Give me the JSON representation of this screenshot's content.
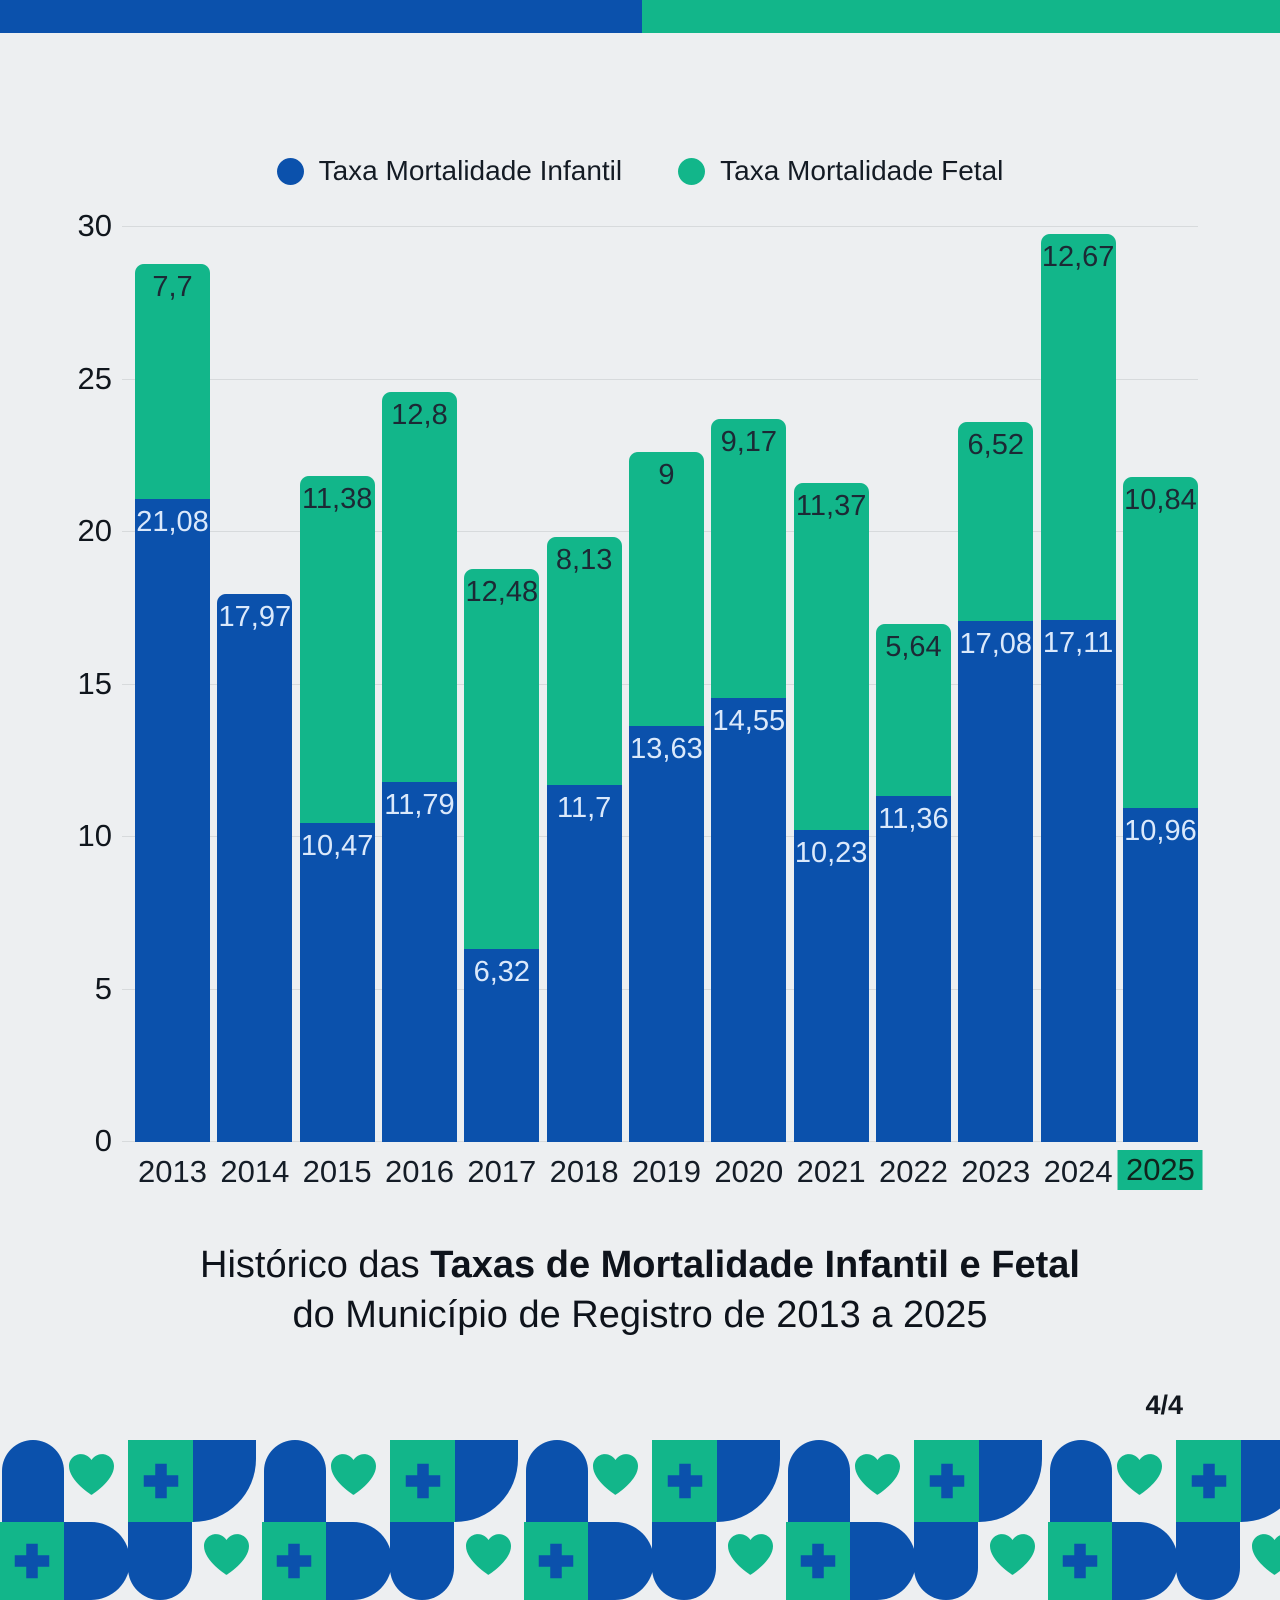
{
  "banner": {
    "left_color": "#0b51ac",
    "right_color": "#12b68a"
  },
  "legend": [
    {
      "label": "Taxa Mortalidade Infantil",
      "color": "#0b51ac"
    },
    {
      "label": "Taxa Mortalidade Fetal",
      "color": "#12b68a"
    }
  ],
  "chart_data": {
    "type": "bar",
    "stacked": true,
    "title": "Histórico das Taxas de Mortalidade Infantil e Fetal do Município de Registro de 2013 a 2025",
    "categories": [
      "2013",
      "2014",
      "2015",
      "2016",
      "2017",
      "2018",
      "2019",
      "2020",
      "2021",
      "2022",
      "2023",
      "2024",
      "2025"
    ],
    "series": [
      {
        "name": "Taxa Mortalidade Infantil",
        "color": "#0b51ac",
        "values": [
          21.08,
          17.97,
          10.47,
          11.79,
          6.32,
          11.7,
          13.63,
          14.55,
          10.23,
          11.36,
          17.08,
          17.11,
          10.96
        ],
        "labels": [
          "21,08",
          "17,97",
          "10,47",
          "11,79",
          "6,32",
          "11,7",
          "13,63",
          "14,55",
          "10,23",
          "11,36",
          "17,08",
          "17,11",
          "10,96"
        ]
      },
      {
        "name": "Taxa Mortalidade Fetal",
        "color": "#12b68a",
        "values": [
          7.7,
          null,
          11.38,
          12.8,
          12.48,
          8.13,
          9,
          9.17,
          11.37,
          5.64,
          6.52,
          12.67,
          10.84
        ],
        "labels": [
          "7,7",
          null,
          "11,38",
          "12,8",
          "12,48",
          "8,13",
          "9",
          "9,17",
          "11,37",
          "5,64",
          "6,52",
          "12,67",
          "10,84"
        ]
      }
    ],
    "ylim": [
      0,
      30
    ],
    "yticks": [
      0,
      5,
      10,
      15,
      20,
      25,
      30
    ],
    "grid": "horizontal",
    "legend_position": "top",
    "highlighted_category": "2025",
    "value_label_color_on_infantil": "#dbe9fb",
    "value_label_color_on_fetal": "#1c2935"
  },
  "title": {
    "line1_regular": "Histórico das ",
    "line1_bold": "Taxas de Mortalidade Infantil e Fetal",
    "line2": "do Município de Registro de 2013 a 2025"
  },
  "page_indicator": "4/4",
  "footer": {
    "icons": [
      "pill-arch-icon",
      "heart-icon",
      "medical-cross-icon",
      "rounded-block-icon"
    ],
    "colors": [
      "#0b51ac",
      "#12b68a"
    ]
  }
}
